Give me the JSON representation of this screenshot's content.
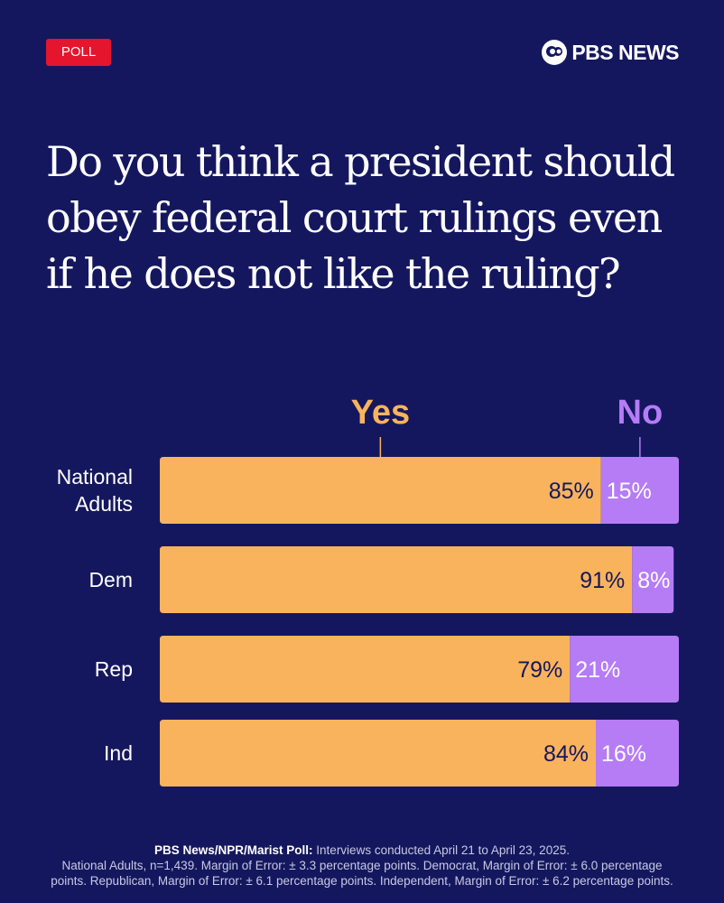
{
  "badge": "POLL",
  "brand": "PBS NEWS",
  "title": "Do you think a president should obey federal court rulings even if he does not like the ruling?",
  "colors": {
    "background": "#15175e",
    "yes": "#f9b35c",
    "no": "#b57cf6",
    "badge": "#e5152d"
  },
  "chart_data": {
    "type": "bar",
    "orientation": "horizontal",
    "stacked": true,
    "categories": [
      [
        "National",
        "Adults"
      ],
      [
        "Dem"
      ],
      [
        "Rep"
      ],
      [
        "Ind"
      ]
    ],
    "series": [
      {
        "name": "Yes",
        "values": [
          85,
          91,
          79,
          84
        ],
        "labels": [
          "85%",
          "91%",
          "79%",
          "84%"
        ],
        "color": "#f9b35c"
      },
      {
        "name": "No",
        "values": [
          15,
          8,
          21,
          16
        ],
        "labels": [
          "15%",
          "8%",
          "21%",
          "16%"
        ],
        "color": "#b57cf6"
      }
    ],
    "xlim": [
      0,
      100
    ],
    "legend_position": "top"
  },
  "footer": {
    "source": "PBS News/NPR/Marist Poll:",
    "line1": " Interviews conducted April 21 to April 23, 2025.",
    "line2": "National Adults, n=1,439. Margin of Error: ± 3.3 percentage points. Democrat,  Margin of Error: ± 6.0 percentage",
    "line3": "points. Republican, Margin of Error: ± 6.1 percentage points. Independent, Margin of Error: ± 6.2 percentage points."
  }
}
